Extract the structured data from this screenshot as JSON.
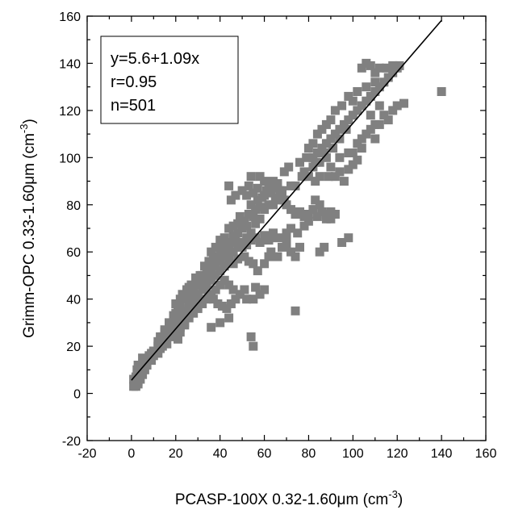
{
  "chart_data": {
    "type": "scatter",
    "xlabel": {
      "prefix": "PCASP-100X 0.32-1.60",
      "mu": "μ",
      "unit": "m (cm",
      "exp": "-3",
      "close": ")"
    },
    "ylabel": {
      "prefix": "Grimm-OPC 0.33-1.60",
      "mu": "μ",
      "unit": "m (cm",
      "exp": "-3",
      "close": ")"
    },
    "xlim": [
      -20,
      160
    ],
    "ylim": [
      -20,
      160
    ],
    "xticks": [
      -20,
      0,
      20,
      40,
      60,
      80,
      100,
      120,
      140,
      160
    ],
    "yticks": [
      -20,
      0,
      20,
      40,
      60,
      80,
      100,
      120,
      140,
      160
    ],
    "grid": false,
    "annotation": [
      "y=5.6+1.09x",
      "r=0.95",
      "n=501"
    ],
    "fit_line": {
      "intercept": 5.6,
      "slope": 1.09,
      "x_range": [
        0,
        140
      ]
    },
    "marker": {
      "shape": "square",
      "color": "#808080"
    },
    "points": [
      [
        1,
        3
      ],
      [
        1.5,
        4
      ],
      [
        2,
        3
      ],
      [
        2.5,
        5
      ],
      [
        3,
        4
      ],
      [
        1,
        6
      ],
      [
        2,
        7
      ],
      [
        3,
        8
      ],
      [
        2.5,
        10
      ],
      [
        3.5,
        9
      ],
      [
        4,
        11
      ],
      [
        3,
        12
      ],
      [
        5,
        12
      ],
      [
        6,
        13
      ],
      [
        7,
        14
      ],
      [
        8,
        15
      ],
      [
        9,
        14
      ],
      [
        5,
        15
      ],
      [
        10,
        16
      ],
      [
        11,
        18
      ],
      [
        12,
        17
      ],
      [
        13,
        19
      ],
      [
        14,
        20
      ],
      [
        15,
        22
      ],
      [
        16,
        21
      ],
      [
        12,
        22
      ],
      [
        14,
        24
      ],
      [
        16,
        25
      ],
      [
        18,
        24
      ],
      [
        19,
        26
      ],
      [
        20,
        25
      ],
      [
        21,
        23
      ],
      [
        18,
        27
      ],
      [
        15,
        27
      ],
      [
        20,
        28
      ],
      [
        22,
        26
      ],
      [
        23,
        30
      ],
      [
        24,
        29
      ],
      [
        25,
        32
      ],
      [
        22,
        33
      ],
      [
        24,
        35
      ],
      [
        26,
        34
      ],
      [
        26,
        38
      ],
      [
        28,
        37
      ],
      [
        27,
        40
      ],
      [
        29,
        42
      ],
      [
        30,
        41
      ],
      [
        28,
        44
      ],
      [
        26,
        45
      ],
      [
        30,
        46
      ],
      [
        31,
        48
      ],
      [
        29,
        49
      ],
      [
        32,
        50
      ],
      [
        33,
        47
      ],
      [
        34,
        52
      ],
      [
        35,
        51
      ],
      [
        33,
        54
      ],
      [
        35,
        56
      ],
      [
        36,
        53
      ],
      [
        37,
        57
      ],
      [
        38,
        55
      ],
      [
        39,
        58
      ],
      [
        36,
        60
      ],
      [
        40,
        59
      ],
      [
        41,
        62
      ],
      [
        42,
        60
      ],
      [
        43,
        63
      ],
      [
        44,
        61
      ],
      [
        38,
        62
      ],
      [
        40,
        65
      ],
      [
        42,
        66
      ],
      [
        45,
        64
      ],
      [
        46,
        67
      ],
      [
        47,
        65
      ],
      [
        48,
        68
      ],
      [
        44,
        70
      ],
      [
        46,
        71
      ],
      [
        48,
        72
      ],
      [
        50,
        70
      ],
      [
        51,
        73
      ],
      [
        52,
        71
      ],
      [
        49,
        75
      ],
      [
        53,
        76
      ],
      [
        55,
        75
      ],
      [
        54,
        80
      ],
      [
        56,
        78
      ],
      [
        57,
        82
      ],
      [
        58,
        79
      ],
      [
        59,
        83
      ],
      [
        60,
        84
      ],
      [
        55,
        85
      ],
      [
        57,
        87
      ],
      [
        61,
        86
      ],
      [
        63,
        85
      ],
      [
        62,
        88
      ],
      [
        64,
        90
      ],
      [
        65,
        87
      ],
      [
        66,
        89
      ],
      [
        67,
        86
      ],
      [
        68,
        84
      ],
      [
        45,
        82
      ],
      [
        47,
        84
      ],
      [
        50,
        86
      ],
      [
        52,
        84
      ],
      [
        53,
        88
      ],
      [
        54,
        92
      ],
      [
        44,
        88
      ],
      [
        58,
        92
      ],
      [
        60,
        90
      ],
      [
        62,
        80
      ],
      [
        65,
        83
      ],
      [
        69,
        82
      ],
      [
        70,
        80
      ],
      [
        72,
        78
      ],
      [
        74,
        76
      ],
      [
        76,
        77
      ],
      [
        78,
        75
      ],
      [
        80,
        76
      ],
      [
        82,
        78
      ],
      [
        84,
        75
      ],
      [
        86,
        77
      ],
      [
        88,
        76
      ],
      [
        90,
        77
      ],
      [
        92,
        76
      ],
      [
        85,
        80
      ],
      [
        83,
        82
      ],
      [
        88,
        74
      ],
      [
        90,
        74
      ],
      [
        72,
        70
      ],
      [
        70,
        68
      ],
      [
        66,
        66
      ],
      [
        64,
        68
      ],
      [
        62,
        65
      ],
      [
        60,
        67
      ],
      [
        58,
        64
      ],
      [
        56,
        66
      ],
      [
        54,
        65
      ],
      [
        52,
        63
      ],
      [
        50,
        62
      ],
      [
        68,
        62
      ],
      [
        70,
        63
      ],
      [
        72,
        60
      ],
      [
        74,
        58
      ],
      [
        76,
        62
      ],
      [
        66,
        58
      ],
      [
        62,
        58
      ],
      [
        60,
        55
      ],
      [
        57,
        52
      ],
      [
        55,
        55
      ],
      [
        53,
        56
      ],
      [
        51,
        58
      ],
      [
        48,
        57
      ],
      [
        46,
        55
      ],
      [
        44,
        56
      ],
      [
        42,
        54
      ],
      [
        40,
        52
      ],
      [
        38,
        50
      ],
      [
        36,
        48
      ],
      [
        34,
        46
      ],
      [
        32,
        44
      ],
      [
        30,
        42
      ],
      [
        28,
        40
      ],
      [
        26,
        36
      ],
      [
        24,
        34
      ],
      [
        22,
        37
      ],
      [
        21,
        35
      ],
      [
        20,
        38
      ],
      [
        22,
        40
      ],
      [
        23,
        42
      ],
      [
        25,
        44
      ],
      [
        27,
        46
      ],
      [
        29,
        48
      ],
      [
        31,
        50
      ],
      [
        33,
        44
      ],
      [
        35,
        42
      ],
      [
        37,
        40
      ],
      [
        39,
        38
      ],
      [
        41,
        37
      ],
      [
        43,
        36
      ],
      [
        45,
        38
      ],
      [
        47,
        40
      ],
      [
        49,
        42
      ],
      [
        51,
        44
      ],
      [
        52,
        40
      ],
      [
        55,
        40
      ],
      [
        58,
        42
      ],
      [
        60,
        44
      ],
      [
        56,
        45
      ],
      [
        46,
        44
      ],
      [
        44,
        46
      ],
      [
        42,
        48
      ],
      [
        40,
        46
      ],
      [
        38,
        44
      ],
      [
        36,
        42
      ],
      [
        34,
        40
      ],
      [
        32,
        38
      ],
      [
        30,
        36
      ],
      [
        28,
        34
      ],
      [
        26,
        32
      ],
      [
        24,
        30
      ],
      [
        22,
        28
      ],
      [
        20,
        30
      ],
      [
        18,
        29
      ],
      [
        36,
        28
      ],
      [
        40,
        30
      ],
      [
        44,
        32
      ],
      [
        54,
        24
      ],
      [
        55,
        20
      ],
      [
        74,
        35
      ],
      [
        63,
        60
      ],
      [
        70,
        66
      ],
      [
        75,
        68
      ],
      [
        78,
        71
      ],
      [
        80,
        73
      ],
      [
        82,
        100
      ],
      [
        84,
        102
      ],
      [
        86,
        104
      ],
      [
        88,
        106
      ],
      [
        90,
        108
      ],
      [
        92,
        110
      ],
      [
        94,
        112
      ],
      [
        96,
        114
      ],
      [
        98,
        116
      ],
      [
        100,
        118
      ],
      [
        102,
        120
      ],
      [
        104,
        122
      ],
      [
        106,
        124
      ],
      [
        108,
        126
      ],
      [
        110,
        128
      ],
      [
        112,
        130
      ],
      [
        114,
        132
      ],
      [
        116,
        134
      ],
      [
        118,
        136
      ],
      [
        120,
        138
      ],
      [
        104,
        138
      ],
      [
        106,
        140
      ],
      [
        108,
        139
      ],
      [
        110,
        136
      ],
      [
        112,
        138
      ],
      [
        115,
        138
      ],
      [
        118,
        139
      ],
      [
        121,
        139
      ],
      [
        110,
        132
      ],
      [
        106,
        130
      ],
      [
        102,
        128
      ],
      [
        98,
        126
      ],
      [
        100,
        124
      ],
      [
        95,
        122
      ],
      [
        92,
        120
      ],
      [
        90,
        116
      ],
      [
        88,
        114
      ],
      [
        86,
        112
      ],
      [
        84,
        110
      ],
      [
        82,
        106
      ],
      [
        80,
        104
      ],
      [
        82,
        96
      ],
      [
        85,
        98
      ],
      [
        88,
        100
      ],
      [
        90,
        96
      ],
      [
        92,
        92
      ],
      [
        94,
        94
      ],
      [
        96,
        90
      ],
      [
        98,
        95
      ],
      [
        100,
        97
      ],
      [
        102,
        99
      ],
      [
        104,
        104
      ],
      [
        106,
        110
      ],
      [
        108,
        112
      ],
      [
        110,
        108
      ],
      [
        112,
        114
      ],
      [
        114,
        118
      ],
      [
        116,
        116
      ],
      [
        118,
        120
      ],
      [
        120,
        122
      ],
      [
        123,
        123
      ],
      [
        140,
        128
      ],
      [
        110,
        114
      ],
      [
        102,
        106
      ],
      [
        98,
        102
      ],
      [
        94,
        100
      ],
      [
        89,
        92
      ],
      [
        85,
        92
      ],
      [
        83,
        90
      ],
      [
        78,
        94
      ],
      [
        76,
        98
      ],
      [
        80,
        92
      ],
      [
        85,
        60
      ],
      [
        87,
        62
      ],
      [
        95,
        64
      ],
      [
        98,
        66
      ],
      [
        100,
        102
      ],
      [
        104,
        108
      ],
      [
        108,
        118
      ],
      [
        112,
        122
      ],
      [
        97,
        112
      ],
      [
        94,
        108
      ],
      [
        91,
        104
      ],
      [
        87,
        102
      ],
      [
        83,
        98
      ],
      [
        79,
        100
      ],
      [
        77,
        92
      ],
      [
        74,
        88
      ],
      [
        69,
        94
      ],
      [
        71,
        96
      ],
      [
        72,
        88
      ],
      [
        68,
        86
      ],
      [
        66,
        82
      ],
      [
        64,
        80
      ],
      [
        60,
        78
      ],
      [
        58,
        74
      ],
      [
        56,
        72
      ],
      [
        54,
        68
      ],
      [
        52,
        66
      ],
      [
        50,
        64
      ],
      [
        48,
        62
      ],
      [
        46,
        60
      ],
      [
        44,
        58
      ],
      [
        42,
        58
      ],
      [
        40,
        56
      ],
      [
        38,
        54
      ],
      [
        36,
        52
      ],
      [
        34,
        50
      ],
      [
        32,
        48
      ],
      [
        30,
        46
      ],
      [
        28,
        44
      ],
      [
        26,
        42
      ],
      [
        24,
        40
      ],
      [
        22,
        36
      ],
      [
        20,
        34
      ],
      [
        19,
        33
      ],
      [
        17,
        30
      ],
      [
        15,
        26
      ],
      [
        13,
        24
      ],
      [
        12,
        20
      ],
      [
        10,
        18
      ],
      [
        9,
        17
      ],
      [
        8,
        16
      ],
      [
        7,
        12
      ],
      [
        6,
        10
      ],
      [
        5,
        8
      ],
      [
        4,
        6
      ],
      [
        3,
        5
      ],
      [
        2,
        4
      ]
    ]
  }
}
